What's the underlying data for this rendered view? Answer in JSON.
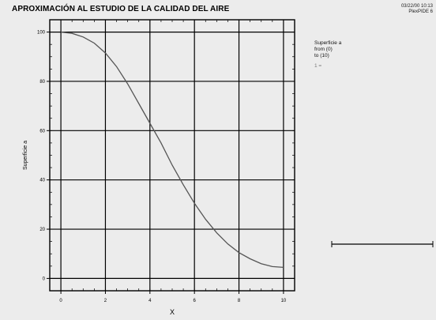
{
  "header": {
    "title": "APROXIMACIÓN AL ESTUDIO DE LA CALIDAD DEL AIRE",
    "stamp_line1": "03/22/00 10:13",
    "stamp_line2": "PlexPIDE 6"
  },
  "legend": {
    "line1": "Superficie a",
    "line2": "from (0)",
    "line3": "to (10)",
    "sub": "1 =",
    "marker_color": "#000000"
  },
  "chart_data": {
    "type": "line",
    "title": "APROXIMACIÓN AL ESTUDIO DE LA CALIDAD DEL AIRE",
    "xlabel": "X",
    "ylabel": "Superficie a",
    "xlim": [
      -0.5,
      10.5
    ],
    "ylim": [
      -5,
      105
    ],
    "xticks": [
      0,
      2,
      4,
      6,
      8,
      10
    ],
    "yticks": [
      0,
      20,
      40,
      60,
      80,
      100
    ],
    "grid": true,
    "legend_position": "right",
    "series": [
      {
        "name": "Superficie a",
        "color": "#555555",
        "x": [
          0,
          0.5,
          1,
          1.5,
          2,
          2.5,
          3,
          3.5,
          4,
          4.5,
          5,
          5.5,
          6,
          6.5,
          7,
          7.5,
          8,
          8.5,
          9,
          9.5,
          10
        ],
        "y": [
          100,
          99.5,
          98,
          95.5,
          91.5,
          86,
          79,
          71,
          63,
          55,
          46,
          38,
          30.5,
          24,
          18.5,
          14,
          10.5,
          8,
          6,
          4.8,
          4.5
        ]
      }
    ]
  }
}
